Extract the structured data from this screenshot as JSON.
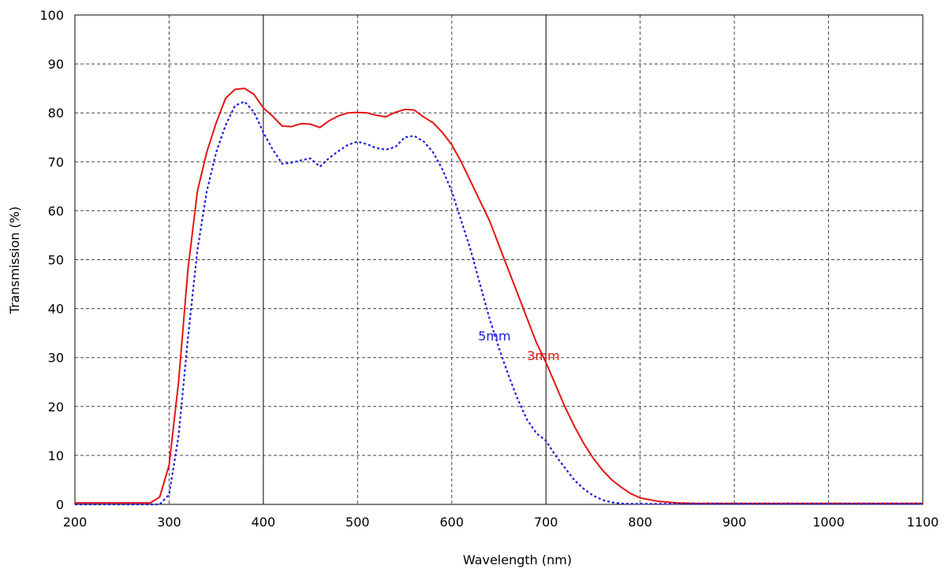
{
  "chart_data": {
    "type": "line",
    "xlabel": "Wavelength (nm)",
    "ylabel": "Transmission (%)",
    "xlim": [
      200,
      1100
    ],
    "ylim": [
      0,
      100
    ],
    "x_ticks": [
      200,
      300,
      400,
      500,
      600,
      700,
      800,
      900,
      1000,
      1100
    ],
    "y_ticks": [
      0,
      10,
      20,
      30,
      40,
      50,
      60,
      70,
      80,
      90,
      100
    ],
    "grid": true,
    "grid_style": "dashed",
    "highlighted_gridlines_x": [
      400,
      700
    ],
    "series": [
      {
        "name": "3mm",
        "color": "#e41414",
        "dash": "solid",
        "x": [
          200,
          280,
          290,
          300,
          310,
          320,
          330,
          340,
          350,
          360,
          370,
          380,
          390,
          400,
          410,
          420,
          430,
          440,
          450,
          460,
          470,
          480,
          490,
          500,
          510,
          520,
          530,
          540,
          550,
          560,
          570,
          580,
          590,
          600,
          610,
          620,
          630,
          640,
          650,
          660,
          670,
          680,
          690,
          700,
          710,
          720,
          730,
          740,
          750,
          760,
          770,
          780,
          790,
          800,
          820,
          840,
          860,
          880,
          900,
          1000,
          1100
        ],
        "y": [
          0.3,
          0.3,
          1.5,
          8,
          25,
          48,
          64,
          72,
          78,
          83,
          84.8,
          85,
          83.8,
          81,
          79.3,
          77.3,
          77.2,
          77.8,
          77.7,
          77,
          78.4,
          79.4,
          80,
          80.1,
          80,
          79.5,
          79.2,
          80.1,
          80.7,
          80.6,
          79.2,
          78,
          76,
          73.5,
          70,
          66,
          62,
          58,
          53,
          48,
          43,
          38,
          33,
          29,
          24.5,
          20,
          16,
          12.5,
          9.5,
          7,
          5,
          3.5,
          2.2,
          1.3,
          0.6,
          0.3,
          0.2,
          0.2,
          0.2,
          0.2,
          0.2
        ],
        "label_position": [
          680,
          29.5
        ]
      },
      {
        "name": "5mm",
        "color": "#1a1ae0",
        "dash": "dotted",
        "x": [
          200,
          280,
          290,
          300,
          310,
          320,
          330,
          340,
          350,
          360,
          370,
          380,
          390,
          400,
          410,
          420,
          430,
          440,
          450,
          460,
          470,
          480,
          490,
          500,
          510,
          520,
          530,
          540,
          550,
          560,
          570,
          580,
          590,
          600,
          610,
          620,
          630,
          640,
          650,
          660,
          670,
          680,
          690,
          700,
          710,
          720,
          730,
          740,
          750,
          760,
          770,
          780,
          790,
          800,
          820,
          840,
          860,
          880,
          900,
          1000,
          1100
        ],
        "y": [
          0,
          0,
          0,
          2,
          14,
          34,
          52,
          64,
          72,
          77.5,
          81.5,
          82.3,
          80.2,
          76,
          72.5,
          69.6,
          69.8,
          70.3,
          70.7,
          69,
          70.8,
          72.2,
          73.5,
          74.1,
          73.6,
          72.8,
          72.5,
          73,
          75,
          75.3,
          74.2,
          72,
          68.5,
          64,
          58,
          52,
          45,
          38,
          32,
          26.5,
          21.5,
          17.3,
          14.5,
          13,
          10,
          7.5,
          5,
          3.2,
          1.8,
          0.9,
          0.4,
          0.2,
          0.1,
          0.1,
          0.1,
          0.1,
          0.1,
          0.1,
          0.1,
          0.1,
          0.1
        ],
        "label_position": [
          628,
          33.5
        ]
      }
    ]
  }
}
